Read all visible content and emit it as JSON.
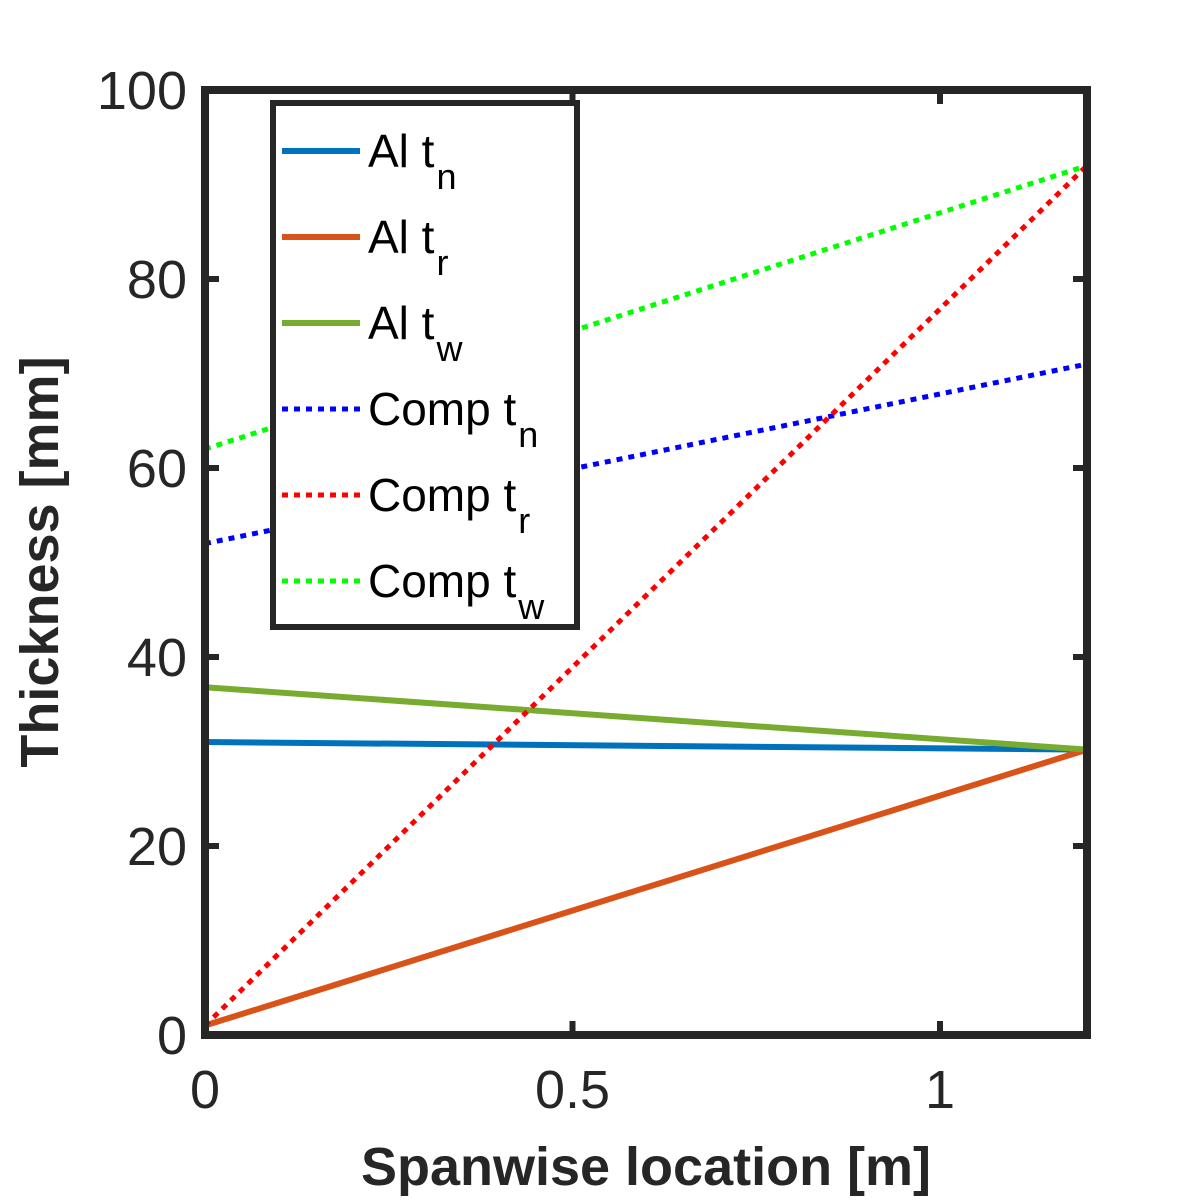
{
  "chart_data": {
    "type": "line",
    "xlabel": "Spanwise location [m]",
    "ylabel": "Thickness [mm]",
    "xlim": [
      0,
      1.2
    ],
    "ylim": [
      0,
      100
    ],
    "xticks": [
      0,
      0.5,
      1
    ],
    "xtick_labels": [
      "0",
      "0.5",
      "1"
    ],
    "yticks": [
      0,
      20,
      40,
      60,
      80,
      100
    ],
    "ytick_labels": [
      "0",
      "20",
      "40",
      "60",
      "80",
      "100"
    ],
    "grid": false,
    "legend_placement": "top-left",
    "series": [
      {
        "name": "Al t",
        "sub": "n",
        "color": "#0072BD",
        "style": "solid",
        "x": [
          0,
          1.2
        ],
        "y": [
          31,
          30.2
        ]
      },
      {
        "name": "Al t",
        "sub": "r",
        "color": "#D95319",
        "style": "solid",
        "x": [
          0,
          1.2
        ],
        "y": [
          1,
          30.2
        ]
      },
      {
        "name": "Al t",
        "sub": "w",
        "color": "#77AC30",
        "style": "solid",
        "x": [
          0,
          1.2
        ],
        "y": [
          36.8,
          30.2
        ]
      },
      {
        "name": "Comp t",
        "sub": "n",
        "color": "#0000FF",
        "style": "dotted",
        "x": [
          0,
          1.2
        ],
        "y": [
          52,
          71
        ]
      },
      {
        "name": "Comp t",
        "sub": "r",
        "color": "#FF0000",
        "style": "dotted",
        "x": [
          0,
          1.2
        ],
        "y": [
          1,
          92
        ]
      },
      {
        "name": "Comp t",
        "sub": "w",
        "color": "#00FF00",
        "style": "dotted",
        "x": [
          0,
          1.2
        ],
        "y": [
          62,
          92
        ]
      }
    ]
  }
}
